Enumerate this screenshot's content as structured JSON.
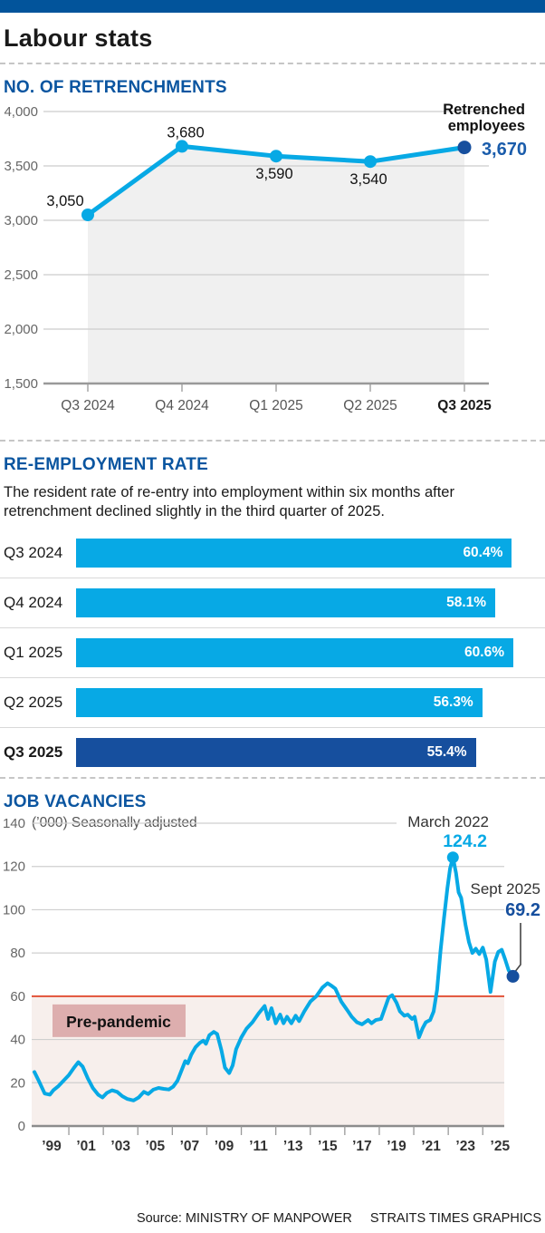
{
  "header": {
    "title": "Labour stats"
  },
  "colors": {
    "topbar_blue": "#02549b",
    "heading_blue": "#0a55a0",
    "accent_blue": "#07a9e5",
    "navy": "#164f9e",
    "red_line": "#e04327",
    "pink_band": "#f7efec",
    "pink_label_bg": "#ddaeae",
    "area_fill": "#f0f0f0",
    "gridline": "#cccccc",
    "axis_dark": "#8c8c8c",
    "tick_text": "#555555"
  },
  "chart_data": [
    {
      "type": "line",
      "title": "NO. OF RETRENCHMENTS",
      "categories": [
        "Q3 2024",
        "Q4 2024",
        "Q1 2025",
        "Q2 2025",
        "Q3 2025"
      ],
      "values": [
        3050,
        3680,
        3590,
        3540,
        3670
      ],
      "point_labels": [
        "3,050",
        "3,680",
        "3,590",
        "3,540"
      ],
      "end_annotation": {
        "label_line1": "Retrenched",
        "label_line2": "employees",
        "value_label": "3,670"
      },
      "ylim": [
        1500,
        4000
      ],
      "yticks": [
        4000,
        3500,
        3000,
        2500,
        2000,
        1500
      ],
      "ytick_labels": [
        "4,000",
        "3,500",
        "3,000",
        "2,500",
        "2,000",
        "1,500"
      ],
      "grid": true,
      "area_fill": true,
      "highlight_index": 4
    },
    {
      "type": "bar",
      "title": "RE-EMPLOYMENT RATE",
      "subtitle": "The resident rate of re-entry into employment within six months after retrenchment declined slightly in the third quarter of 2025.",
      "categories": [
        "Q3 2024",
        "Q4 2024",
        "Q1 2025",
        "Q2 2025",
        "Q3 2025"
      ],
      "values": [
        60.4,
        58.1,
        60.6,
        56.3,
        55.4
      ],
      "value_labels": [
        "60.4%",
        "58.1%",
        "60.6%",
        "56.3%",
        "55.4%"
      ],
      "xlim": [
        0,
        60.6
      ],
      "highlight_index": 4
    },
    {
      "type": "line",
      "title": "JOB VACANCIES",
      "subtitle": "(’000) Seasonally adjusted",
      "ylim": [
        0,
        140
      ],
      "yticks": [
        140,
        120,
        100,
        80,
        60,
        40,
        20,
        0
      ],
      "ytick_labels": [
        "140",
        "120",
        "100",
        "80",
        "60",
        "40",
        "20",
        "0"
      ],
      "xtick_labels": [
        "’99",
        "’01",
        "’03",
        "’05",
        "’07",
        "’09",
        "’11",
        "’13",
        "’15",
        "’17",
        "’19",
        "’21",
        "’23",
        "’25"
      ],
      "xtick_years": [
        1999,
        2001,
        2003,
        2005,
        2007,
        2009,
        2011,
        2013,
        2015,
        2017,
        2019,
        2021,
        2023,
        2025
      ],
      "reference_line": {
        "value": 60,
        "label": "Pre-pandemic"
      },
      "annotations": {
        "peak": {
          "label": "March 2022",
          "value_label": "124.2",
          "year": 2022.27,
          "value": 124.2
        },
        "end": {
          "label": "Sept 2025",
          "value_label": "69.2",
          "year": 2025.75,
          "value": 69.2
        }
      },
      "series": [
        [
          1998.0,
          25
        ],
        [
          1998.25,
          21
        ],
        [
          1998.6,
          15
        ],
        [
          1998.9,
          14.5
        ],
        [
          1999.1,
          16.5
        ],
        [
          1999.4,
          18.5
        ],
        [
          1999.7,
          21
        ],
        [
          2000.0,
          23.5
        ],
        [
          2000.3,
          27
        ],
        [
          2000.55,
          29.5
        ],
        [
          2000.8,
          27.5
        ],
        [
          2001.1,
          22
        ],
        [
          2001.4,
          17.5
        ],
        [
          2001.7,
          14.5
        ],
        [
          2001.95,
          13.2
        ],
        [
          2002.2,
          15.3
        ],
        [
          2002.5,
          16.5
        ],
        [
          2002.8,
          15.8
        ],
        [
          2003.1,
          13.8
        ],
        [
          2003.4,
          12.5
        ],
        [
          2003.75,
          11.8
        ],
        [
          2004.05,
          13.2
        ],
        [
          2004.35,
          15.8
        ],
        [
          2004.6,
          14.8
        ],
        [
          2004.9,
          16.8
        ],
        [
          2005.2,
          17.6
        ],
        [
          2005.5,
          17.2
        ],
        [
          2005.8,
          16.9
        ],
        [
          2006.05,
          18.2
        ],
        [
          2006.3,
          21
        ],
        [
          2006.55,
          26
        ],
        [
          2006.75,
          30
        ],
        [
          2006.9,
          29
        ],
        [
          2007.1,
          33
        ],
        [
          2007.35,
          36.5
        ],
        [
          2007.6,
          38.5
        ],
        [
          2007.8,
          39.5
        ],
        [
          2007.95,
          38
        ],
        [
          2008.15,
          42
        ],
        [
          2008.4,
          43.5
        ],
        [
          2008.6,
          42.5
        ],
        [
          2008.85,
          35
        ],
        [
          2009.05,
          27
        ],
        [
          2009.3,
          24.5
        ],
        [
          2009.5,
          28
        ],
        [
          2009.7,
          35.5
        ],
        [
          2010.0,
          41
        ],
        [
          2010.3,
          45
        ],
        [
          2010.65,
          48
        ],
        [
          2011.0,
          52
        ],
        [
          2011.35,
          55.5
        ],
        [
          2011.55,
          49.5
        ],
        [
          2011.75,
          54.5
        ],
        [
          2012.0,
          47.5
        ],
        [
          2012.25,
          51.5
        ],
        [
          2012.45,
          47.5
        ],
        [
          2012.65,
          50.5
        ],
        [
          2012.9,
          47.5
        ],
        [
          2013.15,
          51
        ],
        [
          2013.35,
          48.5
        ],
        [
          2013.65,
          53
        ],
        [
          2014.0,
          57.5
        ],
        [
          2014.35,
          60
        ],
        [
          2014.7,
          64
        ],
        [
          2015.0,
          66
        ],
        [
          2015.2,
          65
        ],
        [
          2015.45,
          63.5
        ],
        [
          2015.8,
          57.5
        ],
        [
          2016.15,
          53.5
        ],
        [
          2016.4,
          50.5
        ],
        [
          2016.7,
          48
        ],
        [
          2017.0,
          47
        ],
        [
          2017.35,
          49
        ],
        [
          2017.55,
          47.5
        ],
        [
          2017.8,
          49
        ],
        [
          2018.1,
          49.5
        ],
        [
          2018.35,
          55
        ],
        [
          2018.55,
          59.5
        ],
        [
          2018.75,
          60.5
        ],
        [
          2019.0,
          57
        ],
        [
          2019.2,
          53
        ],
        [
          2019.45,
          51
        ],
        [
          2019.65,
          51.5
        ],
        [
          2019.9,
          49.5
        ],
        [
          2020.05,
          50.5
        ],
        [
          2020.3,
          41
        ],
        [
          2020.5,
          45
        ],
        [
          2020.7,
          48
        ],
        [
          2020.95,
          49
        ],
        [
          2021.15,
          53
        ],
        [
          2021.35,
          63
        ],
        [
          2021.55,
          81
        ],
        [
          2021.75,
          96
        ],
        [
          2021.95,
          110
        ],
        [
          2022.1,
          119
        ],
        [
          2022.27,
          124.2
        ],
        [
          2022.45,
          117
        ],
        [
          2022.6,
          108
        ],
        [
          2022.75,
          105.5
        ],
        [
          2023.0,
          93
        ],
        [
          2023.2,
          85
        ],
        [
          2023.4,
          80
        ],
        [
          2023.6,
          82
        ],
        [
          2023.8,
          79.5
        ],
        [
          2024.0,
          82.5
        ],
        [
          2024.2,
          77
        ],
        [
          2024.45,
          62
        ],
        [
          2024.7,
          76
        ],
        [
          2024.9,
          80.5
        ],
        [
          2025.1,
          81.5
        ],
        [
          2025.3,
          77
        ],
        [
          2025.5,
          72
        ],
        [
          2025.75,
          69.2
        ]
      ]
    }
  ],
  "footer": {
    "source": "Source: MINISTRY OF MANPOWER",
    "credit": "STRAITS TIMES GRAPHICS"
  }
}
